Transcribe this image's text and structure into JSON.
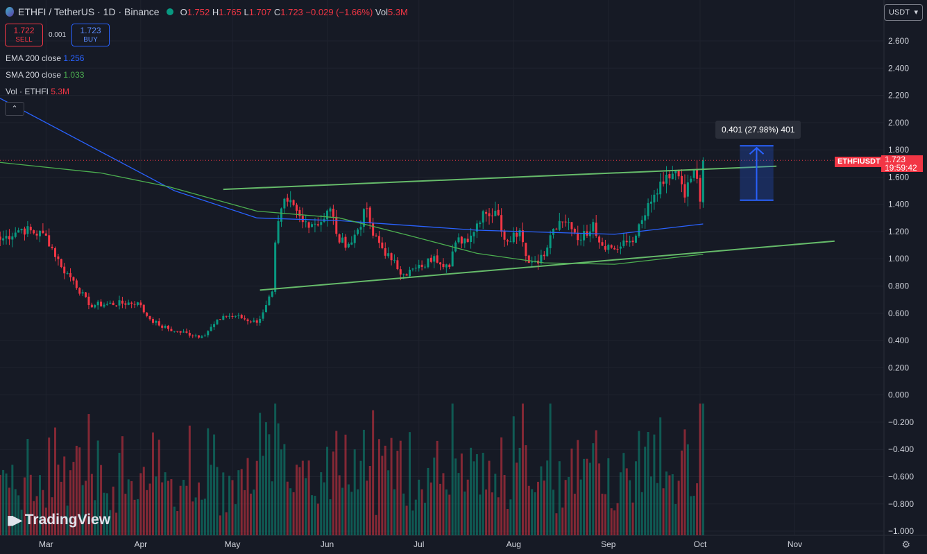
{
  "header": {
    "symbol": "ETHFI / TetherUS · 1D · Binance",
    "open": "1.752",
    "high": "1.765",
    "low": "1.707",
    "close": "1.723",
    "change": "−0.029 (−1.66%)",
    "volume": "5.3M",
    "o_label": "O",
    "h_label": "H",
    "l_label": "L",
    "c_label": "C",
    "vol_label": "Vol"
  },
  "trade": {
    "sell_price": "1.722",
    "sell_label": "SELL",
    "spread": "0.001",
    "buy_price": "1.723",
    "buy_label": "BUY"
  },
  "legend": [
    {
      "name": "EMA 200 close",
      "value": "1.256",
      "color": "#2962ff"
    },
    {
      "name": "SMA 200 close",
      "value": "1.033",
      "color": "#4caf50"
    },
    {
      "name": "Vol · ETHFI",
      "value": "5.3M",
      "color": "#f23645"
    }
  ],
  "currency": "USDT",
  "measure": {
    "label": "0.401 (27.98%) 401",
    "from": 1.43,
    "to": 1.83,
    "start": "2024-10-14",
    "end": "2024-10-25"
  },
  "price_label": {
    "symbol": "ETHFIUSDT",
    "price": "1.723",
    "countdown": "19:59:42",
    "value": 1.723
  },
  "branding": "TradingView",
  "colors": {
    "up": "#089981",
    "down": "#f23645",
    "ema": "#2962ff",
    "sma": "#4caf50",
    "trend": "#66bb6a",
    "bg": "#161a25"
  },
  "chart_data": {
    "type": "candlestick",
    "y_ticks": [
      "2.600",
      "2.400",
      "2.200",
      "2.000",
      "1.800",
      "1.600",
      "1.400",
      "1.200",
      "1.000",
      "0.800",
      "0.600",
      "0.400",
      "0.200",
      "0.000",
      "−0.200",
      "−0.400",
      "−0.600",
      "−0.800",
      "−1.000"
    ],
    "ylim": [
      -1.0,
      2.6
    ],
    "x_ticks": [
      {
        "label": "Mar",
        "date": "2024-03-01"
      },
      {
        "label": "Apr",
        "date": "2024-04-01"
      },
      {
        "label": "May",
        "date": "2024-05-01"
      },
      {
        "label": "Jun",
        "date": "2024-06-01"
      },
      {
        "label": "Jul",
        "date": "2024-07-01"
      },
      {
        "label": "Aug",
        "date": "2024-08-01"
      },
      {
        "label": "Sep",
        "date": "2024-09-01"
      },
      {
        "label": "Oct",
        "date": "2024-10-01"
      },
      {
        "label": "Nov",
        "date": "2024-11-01"
      }
    ],
    "close_path": [
      [
        "2024-02-15",
        1.14
      ],
      [
        "2024-02-22",
        1.22
      ],
      [
        "2024-03-01",
        1.17
      ],
      [
        "2024-03-06",
        0.94
      ],
      [
        "2024-03-10",
        0.84
      ],
      [
        "2024-03-15",
        0.66
      ],
      [
        "2024-03-31",
        0.68
      ],
      [
        "2024-04-03",
        0.58
      ],
      [
        "2024-04-07",
        0.51
      ],
      [
        "2024-04-12",
        0.47
      ],
      [
        "2024-04-21",
        0.43
      ],
      [
        "2024-04-28",
        0.58
      ],
      [
        "2024-05-02",
        0.58
      ],
      [
        "2024-05-09",
        0.53
      ],
      [
        "2024-05-12",
        0.66
      ],
      [
        "2024-05-14",
        0.76
      ],
      [
        "2024-05-15",
        1.12
      ],
      [
        "2024-05-17",
        1.37
      ],
      [
        "2024-05-19",
        1.42
      ],
      [
        "2024-05-24",
        1.27
      ],
      [
        "2024-05-30",
        1.27
      ],
      [
        "2024-06-02",
        1.37
      ],
      [
        "2024-06-05",
        1.12
      ],
      [
        "2024-06-09",
        1.12
      ],
      [
        "2024-06-14",
        1.37
      ],
      [
        "2024-06-16",
        1.17
      ],
      [
        "2024-06-22",
        0.99
      ],
      [
        "2024-06-26",
        0.89
      ],
      [
        "2024-07-02",
        0.94
      ],
      [
        "2024-07-06",
        1.02
      ],
      [
        "2024-07-11",
        0.94
      ],
      [
        "2024-07-13",
        1.12
      ],
      [
        "2024-07-18",
        1.17
      ],
      [
        "2024-07-22",
        1.35
      ],
      [
        "2024-07-27",
        1.32
      ],
      [
        "2024-07-29",
        1.14
      ],
      [
        "2024-08-03",
        1.21
      ],
      [
        "2024-08-06",
        0.97
      ],
      [
        "2024-08-11",
        1.02
      ],
      [
        "2024-08-14",
        1.22
      ],
      [
        "2024-08-19",
        1.27
      ],
      [
        "2024-08-23",
        1.14
      ],
      [
        "2024-08-27",
        1.27
      ],
      [
        "2024-08-29",
        1.12
      ],
      [
        "2024-09-04",
        1.07
      ],
      [
        "2024-09-10",
        1.17
      ],
      [
        "2024-09-15",
        1.42
      ],
      [
        "2024-09-19",
        1.55
      ],
      [
        "2024-09-23",
        1.65
      ],
      [
        "2024-09-26",
        1.45
      ],
      [
        "2024-09-29",
        1.65
      ],
      [
        "2024-10-01",
        1.42
      ],
      [
        "2024-10-02",
        1.723
      ]
    ],
    "ema200": [
      [
        "2024-02-14",
        2.19
      ],
      [
        "2024-04-12",
        1.5
      ],
      [
        "2024-05-09",
        1.3
      ],
      [
        "2024-06-05",
        1.28
      ],
      [
        "2024-07-20",
        1.21
      ],
      [
        "2024-09-03",
        1.18
      ],
      [
        "2024-10-02",
        1.256
      ]
    ],
    "sma200": [
      [
        "2024-02-14",
        1.71
      ],
      [
        "2024-03-19",
        1.63
      ],
      [
        "2024-04-10",
        1.53
      ],
      [
        "2024-05-09",
        1.35
      ],
      [
        "2024-06-05",
        1.3
      ],
      [
        "2024-06-28",
        1.17
      ],
      [
        "2024-07-20",
        1.04
      ],
      [
        "2024-08-11",
        0.97
      ],
      [
        "2024-09-03",
        0.96
      ],
      [
        "2024-10-02",
        1.033
      ]
    ],
    "trendlines": [
      {
        "from": [
          "2024-04-28",
          1.51
        ],
        "to": [
          "2024-10-26",
          1.68
        ]
      },
      {
        "from": [
          "2024-05-10",
          0.77
        ],
        "to": [
          "2024-11-14",
          1.13
        ]
      }
    ]
  }
}
